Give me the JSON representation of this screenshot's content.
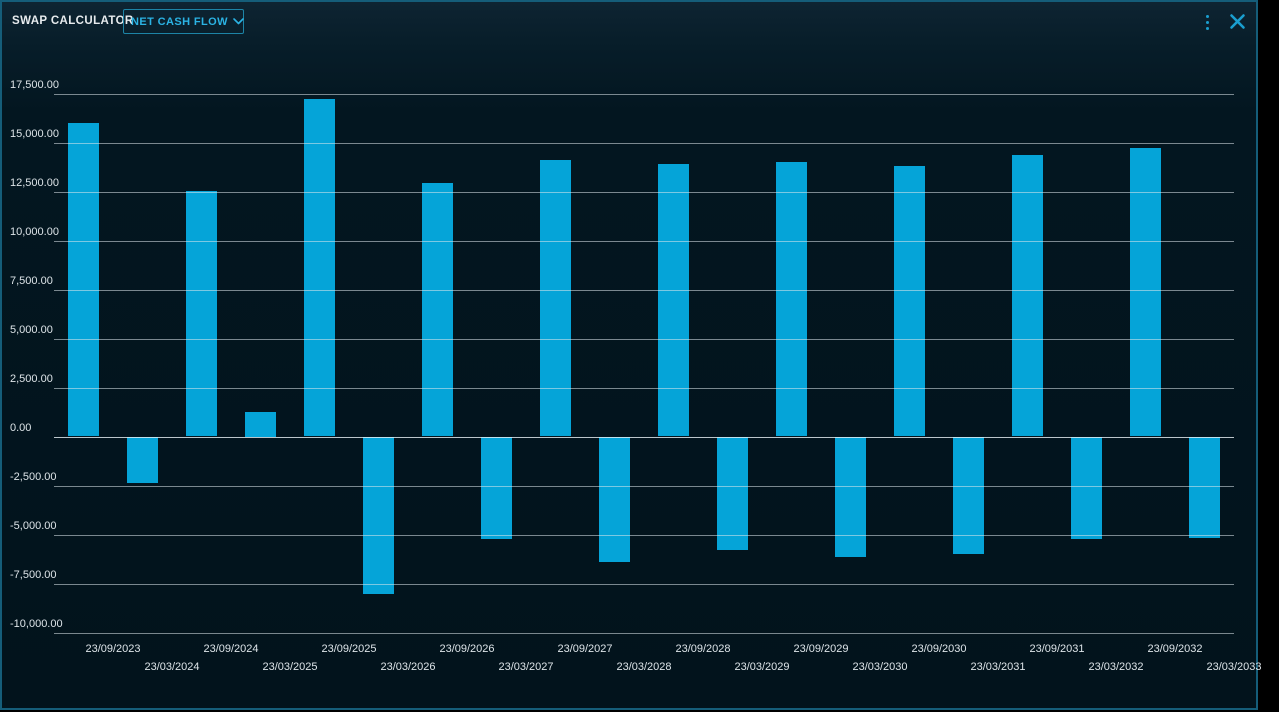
{
  "header": {
    "title": "SWAP CALCULATOR",
    "dropdown_value": "NET CASH FLOW"
  },
  "colors": {
    "window_border": "#155d79",
    "background": "#02131c",
    "header_background": "#0e2432",
    "bar": "#05a4d8",
    "accent_text": "#2bb3e4",
    "dropdown_border": "#1d84a6",
    "icon": "#1a9fd0",
    "axis_text": "#dde4e8",
    "gridline": "rgba(222,231,236,0.55)"
  },
  "chart_data": {
    "type": "bar",
    "title": "NET CASH FLOW",
    "series_name": "Net cash flow",
    "categories": [
      "23/09/2023",
      "23/03/2024",
      "23/09/2024",
      "23/03/2025",
      "23/09/2025",
      "23/03/2026",
      "23/09/2026",
      "23/03/2027",
      "23/09/2027",
      "23/03/2028",
      "23/09/2028",
      "23/03/2029",
      "23/09/2029",
      "23/03/2030",
      "23/09/2030",
      "23/03/2031",
      "23/09/2031",
      "23/03/2032",
      "23/09/2032",
      "23/03/2033"
    ],
    "values": [
      16000,
      -2350,
      12550,
      1250,
      17200,
      -8050,
      12950,
      -5250,
      14100,
      -6400,
      13900,
      -5800,
      14000,
      -6150,
      13800,
      -6000,
      14350,
      -5250,
      14700,
      -5200
    ],
    "ylim": [
      -10000,
      17500
    ],
    "ytick_step": 2500,
    "ytick_labels": [
      "17,500.00",
      "15,000.00",
      "12,500.00",
      "10,000.00",
      "7,500.00",
      "5,000.00",
      "2,500.00",
      "0.00",
      "-2,500.00",
      "-5,000.00",
      "-7,500.00",
      "-10,000.00"
    ],
    "xlabel": "",
    "ylabel": "",
    "grid": "horizontal",
    "legend": "none",
    "x_label_layout": "staggered-two-rows",
    "bar_color": "#05a4d8"
  }
}
